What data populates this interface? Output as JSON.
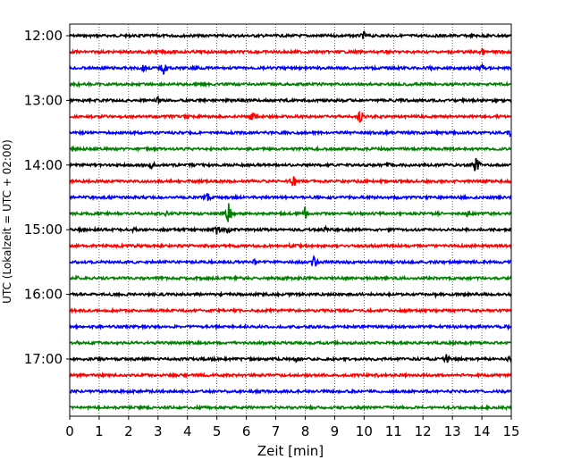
{
  "chart_data": {
    "type": "line",
    "xlabel": "Zeit  [min]",
    "ylabel": "UTC (Lokalzeit = UTC + 02:00)",
    "xlim": [
      0,
      15
    ],
    "x_ticks": [
      0,
      1,
      2,
      3,
      4,
      5,
      6,
      7,
      8,
      9,
      10,
      11,
      12,
      13,
      14,
      15
    ],
    "x_tick_labels": [
      "0",
      "1",
      "2",
      "3",
      "4",
      "5",
      "6",
      "7",
      "8",
      "9",
      "10",
      "11",
      "12",
      "13",
      "14",
      "15"
    ],
    "y_tick_labels": [
      "12:00",
      "13:00",
      "14:00",
      "15:00",
      "16:00",
      "17:00"
    ],
    "grid": "vertical dotted",
    "trace_interval_min": 15,
    "colors_cycle": [
      "#000000",
      "#ff0000",
      "#0000ff",
      "#008000"
    ],
    "traces": [
      {
        "start": "12:00",
        "color": "#000000",
        "events": [
          {
            "t": 10.0,
            "amp": 5
          }
        ]
      },
      {
        "start": "12:15",
        "color": "#ff0000",
        "events": [
          {
            "t": 14.0,
            "amp": 5
          }
        ]
      },
      {
        "start": "12:30",
        "color": "#0000ff",
        "events": [
          {
            "t": 2.5,
            "amp": 5
          },
          {
            "t": 3.2,
            "amp": 8
          },
          {
            "t": 4.3,
            "amp": 5
          },
          {
            "t": 12.3,
            "amp": 4
          },
          {
            "t": 14.0,
            "amp": 7
          }
        ]
      },
      {
        "start": "12:45",
        "color": "#008000",
        "events": [
          {
            "t": 0.3,
            "amp": 3
          }
        ]
      },
      {
        "start": "13:00",
        "color": "#000000",
        "events": [
          {
            "t": 3.0,
            "amp": 4
          }
        ]
      },
      {
        "start": "13:15",
        "color": "#ff0000",
        "events": [
          {
            "t": 6.2,
            "amp": 6
          },
          {
            "t": 9.9,
            "amp": 9
          }
        ]
      },
      {
        "start": "13:30",
        "color": "#0000ff",
        "events": [
          {
            "t": 15.0,
            "amp": 7
          }
        ]
      },
      {
        "start": "13:45",
        "color": "#008000",
        "events": [
          {
            "t": 0.2,
            "amp": 4
          },
          {
            "t": 13.0,
            "amp": 3
          }
        ]
      },
      {
        "start": "14:00",
        "color": "#000000",
        "events": [
          {
            "t": 2.8,
            "amp": 5
          },
          {
            "t": 10.8,
            "amp": 4
          },
          {
            "t": 13.8,
            "amp": 11
          }
        ]
      },
      {
        "start": "14:15",
        "color": "#ff0000",
        "events": [
          {
            "t": 7.6,
            "amp": 9
          }
        ]
      },
      {
        "start": "14:30",
        "color": "#0000ff",
        "events": [
          {
            "t": 4.7,
            "amp": 6
          }
        ]
      },
      {
        "start": "14:45",
        "color": "#008000",
        "events": [
          {
            "t": 3.3,
            "amp": 4
          },
          {
            "t": 5.4,
            "amp": 12
          },
          {
            "t": 8.0,
            "amp": 9
          },
          {
            "t": 13.5,
            "amp": 4
          }
        ]
      },
      {
        "start": "15:00",
        "color": "#000000",
        "events": [
          {
            "t": 2.2,
            "amp": 5
          },
          {
            "t": 5.0,
            "amp": 6
          },
          {
            "t": 5.4,
            "amp": 5
          },
          {
            "t": 8.7,
            "amp": 3
          }
        ]
      },
      {
        "start": "15:15",
        "color": "#ff0000",
        "events": [
          {
            "t": 7.5,
            "amp": 3
          }
        ]
      },
      {
        "start": "15:30",
        "color": "#0000ff",
        "events": [
          {
            "t": 6.3,
            "amp": 4
          },
          {
            "t": 8.3,
            "amp": 8
          }
        ]
      },
      {
        "start": "15:45",
        "color": "#008000",
        "events": [
          {
            "t": 0.3,
            "amp": 4
          },
          {
            "t": 7.4,
            "amp": 3
          }
        ]
      },
      {
        "start": "16:00",
        "color": "#000000",
        "events": [
          {
            "t": 5.5,
            "amp": 4
          },
          {
            "t": 12.4,
            "amp": 3
          }
        ]
      },
      {
        "start": "16:15",
        "color": "#ff0000",
        "events": [
          {
            "t": 0.1,
            "amp": 3
          }
        ]
      },
      {
        "start": "16:30",
        "color": "#0000ff",
        "events": [
          {
            "t": 14.9,
            "amp": 3
          }
        ]
      },
      {
        "start": "16:45",
        "color": "#008000",
        "events": [
          {
            "t": 0.3,
            "amp": 3
          }
        ]
      },
      {
        "start": "17:00",
        "color": "#000000",
        "events": [
          {
            "t": 7.7,
            "amp": 4
          },
          {
            "t": 12.8,
            "amp": 6
          },
          {
            "t": 14.9,
            "amp": 4
          }
        ]
      },
      {
        "start": "17:15",
        "color": "#ff0000",
        "events": [
          {
            "t": 10.5,
            "amp": 4
          }
        ]
      },
      {
        "start": "17:30",
        "color": "#0000ff",
        "events": [
          {
            "t": 6.4,
            "amp": 3
          }
        ]
      },
      {
        "start": "17:45",
        "color": "#008000",
        "events": [
          {
            "t": 14.8,
            "amp": 3
          }
        ]
      }
    ]
  }
}
